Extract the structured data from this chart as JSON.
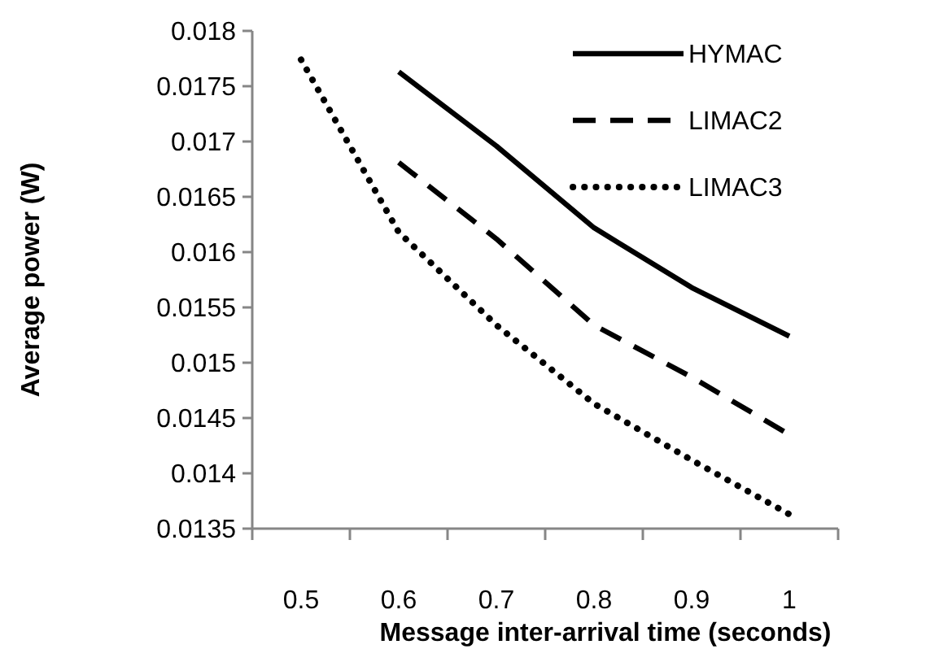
{
  "chart_data": {
    "type": "line",
    "xlabel": "Message inter-arrival time (seconds)",
    "ylabel": "Average power (W)",
    "categories": [
      "0.5",
      "0.6",
      "0.7",
      "0.8",
      "0.9",
      "1"
    ],
    "series": [
      {
        "name": "HYMAC",
        "color": "#000000",
        "line_style": "solid",
        "values": [
          null,
          0.01763,
          0.01696,
          0.01622,
          0.01568,
          0.01524
        ]
      },
      {
        "name": "LIMAC2",
        "color": "#000000",
        "line_style": "dashed",
        "values": [
          null,
          0.01681,
          0.01612,
          0.01534,
          0.01487,
          0.01435
        ]
      },
      {
        "name": "LIMAC3",
        "color": "#000000",
        "line_style": "dotted",
        "values": [
          0.01774,
          0.01618,
          0.01534,
          0.01463,
          0.01412,
          0.01363
        ]
      }
    ],
    "ylim": [
      0.0135,
      0.018
    ],
    "yticks": [
      0.0135,
      0.014,
      0.0145,
      0.015,
      0.0155,
      0.016,
      0.0165,
      0.017,
      0.0175,
      0.018
    ],
    "grid": false,
    "legend": "top right",
    "marker": "none"
  }
}
